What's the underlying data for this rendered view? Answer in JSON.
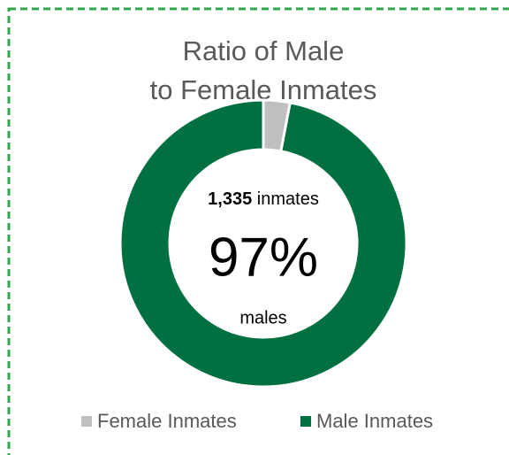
{
  "chart_data": {
    "type": "donut",
    "title": [
      "Ratio of Male",
      "to Female Inmates"
    ],
    "categories": [
      "Female Inmates",
      "Male Inmates"
    ],
    "values": [
      3,
      97
    ],
    "value_labels": [
      null,
      "97%"
    ],
    "colors": [
      "#bfbfbf",
      "#007040"
    ],
    "center_text": {
      "count": "1,335",
      "count_unit": "inmates",
      "caption": "males"
    },
    "legend": "bottom"
  }
}
